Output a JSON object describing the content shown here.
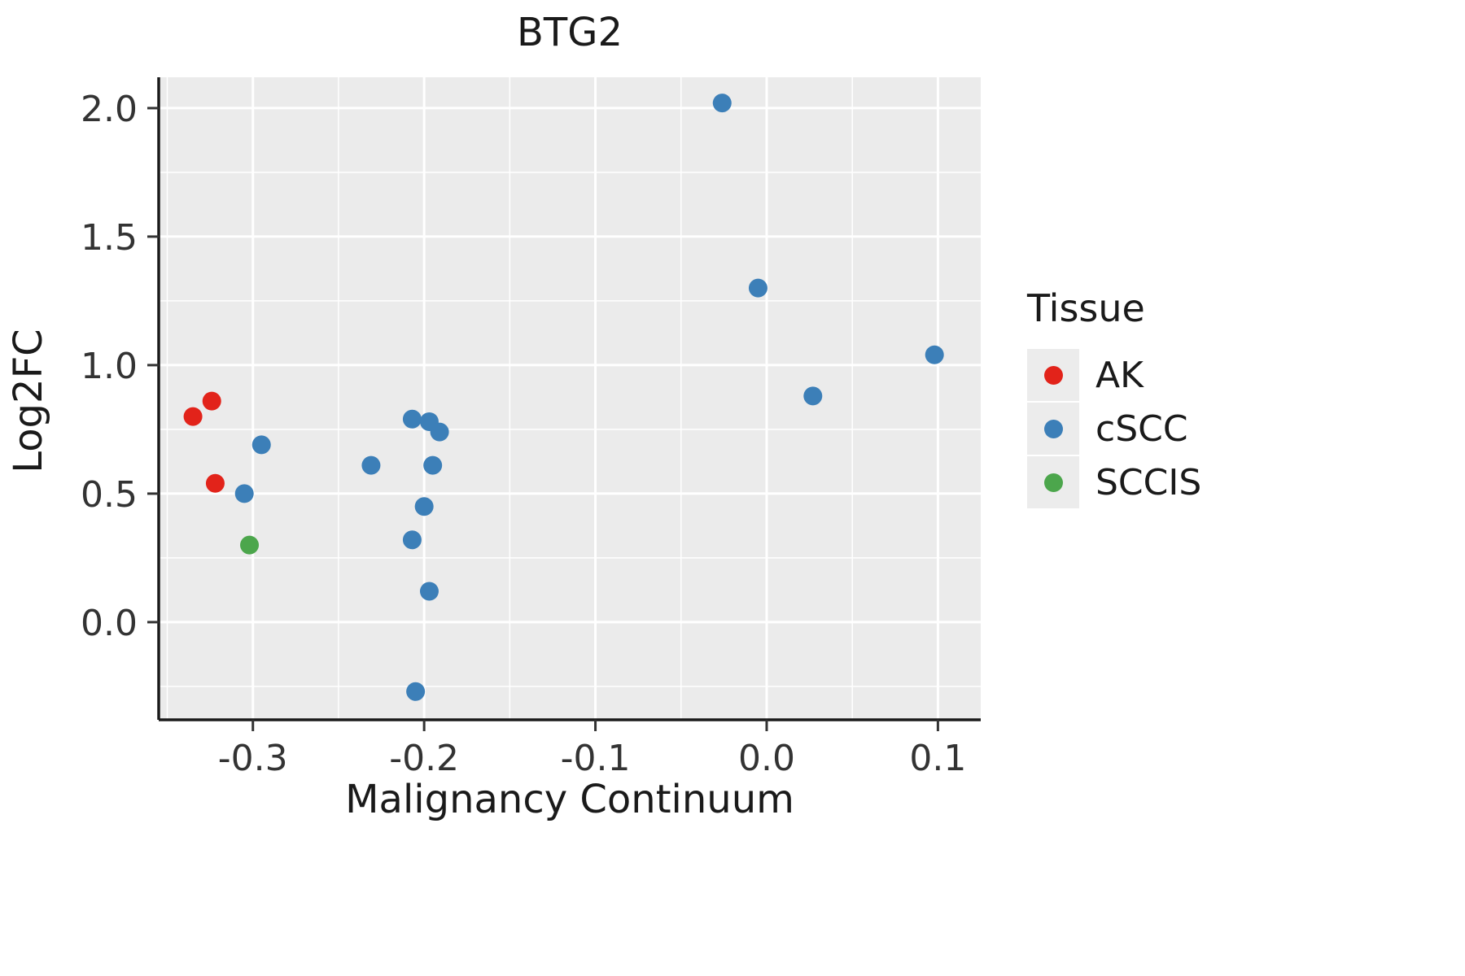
{
  "title": "BTG2",
  "xlabel": "Malignancy Continuum",
  "ylabel": "Log2FC",
  "legend": {
    "title": "Tissue",
    "items": [
      {
        "label": "AK",
        "color": "#e2231a"
      },
      {
        "label": "cSCC",
        "color": "#3c7fb8"
      },
      {
        "label": "SCCIS",
        "color": "#4ca64c"
      }
    ]
  },
  "chart_data": {
    "type": "scatter",
    "title": "BTG2",
    "xlabel": "Malignancy Continuum",
    "ylabel": "Log2FC",
    "xlim": [
      -0.355,
      0.125
    ],
    "ylim": [
      -0.38,
      2.12
    ],
    "x_ticks": [
      -0.3,
      -0.2,
      -0.1,
      0.0,
      0.1
    ],
    "y_ticks": [
      0.0,
      0.5,
      1.0,
      1.5,
      2.0
    ],
    "grid": true,
    "panel_color": "#ebebeb",
    "grid_color": "#ffffff",
    "legend_position": "right",
    "series": [
      {
        "name": "AK",
        "color": "#e2231a",
        "points": [
          [
            -0.335,
            0.8
          ],
          [
            -0.324,
            0.86
          ],
          [
            -0.322,
            0.54
          ]
        ]
      },
      {
        "name": "cSCC",
        "color": "#3c7fb8",
        "points": [
          [
            -0.305,
            0.5
          ],
          [
            -0.295,
            0.69
          ],
          [
            -0.231,
            0.61
          ],
          [
            -0.207,
            0.79
          ],
          [
            -0.197,
            0.78
          ],
          [
            -0.191,
            0.74
          ],
          [
            -0.195,
            0.61
          ],
          [
            -0.2,
            0.45
          ],
          [
            -0.207,
            0.32
          ],
          [
            -0.197,
            0.12
          ],
          [
            -0.205,
            -0.27
          ],
          [
            -0.026,
            2.02
          ],
          [
            -0.005,
            1.3
          ],
          [
            0.027,
            0.88
          ],
          [
            0.098,
            1.04
          ]
        ]
      },
      {
        "name": "SCCIS",
        "color": "#4ca64c",
        "points": [
          [
            -0.302,
            0.3
          ]
        ]
      }
    ]
  }
}
